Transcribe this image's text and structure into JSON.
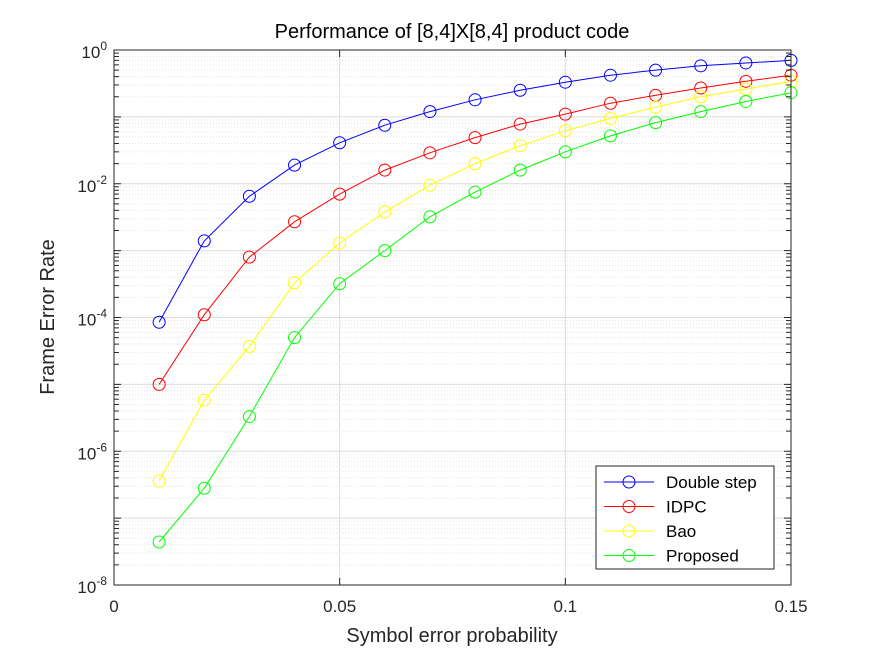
{
  "chart_data": {
    "type": "line",
    "title": "Performance of [8,4]X[8,4] product code",
    "xlabel": "Symbol error probability",
    "ylabel": "Frame Error Rate",
    "xlim": [
      0,
      0.15
    ],
    "ylim": [
      1e-08,
      1
    ],
    "yscale": "log",
    "grid": true,
    "minor_grid": true,
    "legend_position": "bottom-right",
    "x_ticks": [
      {
        "value": 0,
        "label": "0"
      },
      {
        "value": 0.05,
        "label": "0.05"
      },
      {
        "value": 0.1,
        "label": "0.1"
      },
      {
        "value": 0.15,
        "label": "0.15"
      }
    ],
    "y_ticks": [
      {
        "value": 1,
        "base": "10",
        "exp": "0"
      },
      {
        "value": 0.01,
        "base": "10",
        "exp": "-2"
      },
      {
        "value": 0.0001,
        "base": "10",
        "exp": "-4"
      },
      {
        "value": 1e-06,
        "base": "10",
        "exp": "-6"
      },
      {
        "value": 1e-08,
        "base": "10",
        "exp": "-8"
      }
    ],
    "x": [
      0.01,
      0.02,
      0.03,
      0.04,
      0.05,
      0.06,
      0.07,
      0.08,
      0.09,
      0.1,
      0.11,
      0.12,
      0.13,
      0.14,
      0.15
    ],
    "series": [
      {
        "name": "Double step",
        "color": "#0000ff",
        "values": [
          8.5e-05,
          0.0014,
          0.0065,
          0.019,
          0.041,
          0.075,
          0.12,
          0.18,
          0.25,
          0.33,
          0.42,
          0.5,
          0.58,
          0.64,
          0.7
        ]
      },
      {
        "name": "IDPC",
        "color": "#ff0000",
        "values": [
          1e-05,
          0.00011,
          0.0008,
          0.0027,
          0.007,
          0.016,
          0.029,
          0.049,
          0.078,
          0.11,
          0.16,
          0.21,
          0.27,
          0.34,
          0.42
        ]
      },
      {
        "name": "Bao",
        "color": "#ffff00",
        "values": [
          3.6e-07,
          5.8e-06,
          3.7e-05,
          0.00033,
          0.0013,
          0.0038,
          0.0095,
          0.02,
          0.037,
          0.062,
          0.095,
          0.14,
          0.2,
          0.26,
          0.34
        ]
      },
      {
        "name": "Proposed",
        "color": "#00ff00",
        "values": [
          4.4e-08,
          2.8e-07,
          3.3e-06,
          5e-05,
          0.00032,
          0.001,
          0.0032,
          0.0075,
          0.016,
          0.03,
          0.052,
          0.082,
          0.12,
          0.17,
          0.23
        ]
      }
    ]
  }
}
